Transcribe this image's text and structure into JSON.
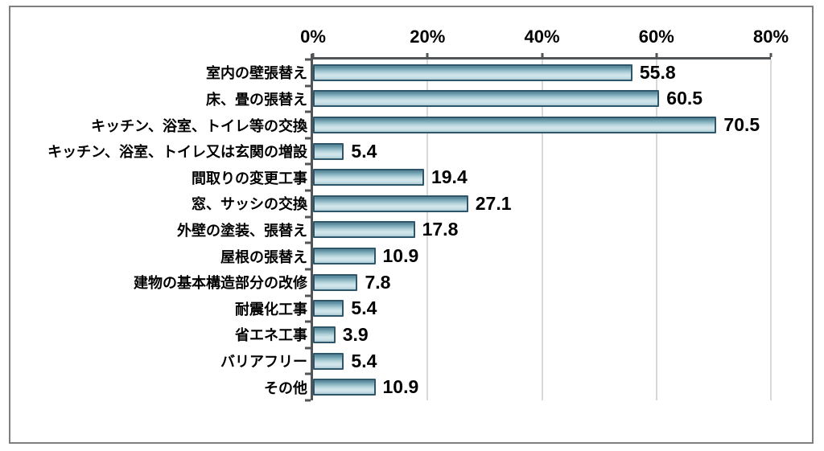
{
  "chart_data": {
    "type": "bar",
    "orientation": "horizontal",
    "title": "",
    "categories": [
      "室内の壁張替え",
      "床、畳の張替え",
      "キッチン、浴室、トイレ等の交換",
      "キッチン、浴室、トイレ又は玄関の増設",
      "間取りの変更工事",
      "窓、サッシの交換",
      "外壁の塗装、張替え",
      "屋根の張替え",
      "建物の基本構造部分の改修",
      "耐震化工事",
      "省エネ工事",
      "バリアフリー",
      "その他"
    ],
    "values": [
      55.8,
      60.5,
      70.5,
      5.4,
      19.4,
      27.1,
      17.8,
      10.9,
      7.8,
      5.4,
      3.9,
      5.4,
      10.9
    ],
    "value_labels": [
      "55.8",
      "60.5",
      "70.5",
      "5.4",
      "19.4",
      "27.1",
      "17.8",
      "10.9",
      "7.8",
      "5.4",
      "3.9",
      "5.4",
      "10.9"
    ],
    "x_axis": {
      "position": "top",
      "min": 0,
      "max": 80,
      "tick_labels": [
        "0%",
        "20%",
        "40%",
        "60%",
        "80%"
      ],
      "tick_values": [
        0,
        20,
        40,
        60,
        80
      ]
    },
    "y_axis": {
      "tick_marks": "category-boundaries"
    },
    "grid": {
      "vertical": true,
      "horizontal": false
    },
    "legend": "none",
    "colors": {
      "bar_border": "#2e566a",
      "bar_fill_light": "#d2e6eb",
      "bar_fill_dark": "#497b8f",
      "axis_line": "#515558",
      "gridline": "#d8d8d8",
      "frame_border": "#7f7f7f",
      "text": "#000000",
      "background": "#ffffff"
    }
  }
}
